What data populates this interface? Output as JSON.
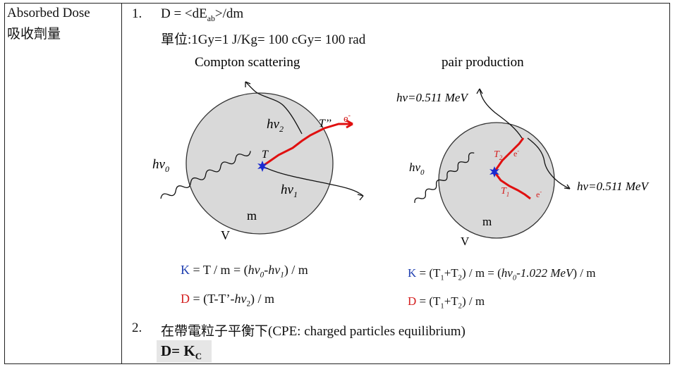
{
  "term": {
    "en": "Absorbed Dose",
    "zh": "吸收劑量"
  },
  "items": [
    {
      "num": "1.",
      "formula_prefix": "D = <dE",
      "formula_sub": "ab",
      "formula_suffix": ">/dm",
      "unit_line": "單位:1Gy=1 J/Kg= 100 cGy= 100 rad"
    },
    {
      "num": "2.",
      "text": "在帶電粒子平衡下(CPE: charged particles equilibrium)",
      "result_main": "D= K",
      "result_sub": "C"
    }
  ],
  "compton": {
    "title": "Compton scattering",
    "lbl_hv0": "hv",
    "lbl_hv0_sub": "0",
    "lbl_hv1": "hv",
    "lbl_hv1_sub": "1",
    "lbl_hv2": "hv",
    "lbl_hv2_sub": "2",
    "lbl_T": "T",
    "lbl_T2": "T’’",
    "lbl_e": "e",
    "lbl_e_sup": "-",
    "lbl_m": "m",
    "lbl_V": "V",
    "eq_K_sym": "K",
    "eq_K_a": " = T / m = (",
    "eq_K_hv0": "hv",
    "eq_K_hv0_sub": "0",
    "eq_K_mid": "-",
    "eq_K_hv1": "hv",
    "eq_K_hv1_sub": "1",
    "eq_K_end": ") / m",
    "eq_D_sym": "D",
    "eq_D_a": " = (T-T’-",
    "eq_D_hv2": "hv",
    "eq_D_hv2_sub": "2",
    "eq_D_end": ") / m"
  },
  "pair": {
    "title": "pair production",
    "lbl_hv_top": "hv=0.511 MeV",
    "lbl_hv_right": "hv=0.511 MeV",
    "lbl_hv0": "hv",
    "lbl_hv0_sub": "0",
    "lbl_T2": "T",
    "lbl_T2_sub": "2",
    "lbl_T1": "T",
    "lbl_T1_sub": "1",
    "lbl_e": "e",
    "lbl_e_sup": "-",
    "lbl_m": "m",
    "lbl_V": "V",
    "eq_K_sym": "K",
    "eq_K_a": " = (T",
    "eq_K_s1": "1",
    "eq_K_b": "+T",
    "eq_K_s2": "2",
    "eq_K_c": ") / m = (",
    "eq_K_hv": "hv",
    "eq_K_hv_sub": "0",
    "eq_K_d": "-1.022 MeV",
    "eq_K_e": ") / m",
    "eq_D_sym": "D",
    "eq_D_a": " = (T",
    "eq_D_s1": "1",
    "eq_D_b": "+T",
    "eq_D_s2": "2",
    "eq_D_c": ") / m"
  },
  "colors": {
    "blue": "#1f3fb0",
    "red": "#d42020",
    "circle_fill": "#d9d9d9",
    "track": "#e01010",
    "star": "#1a2ad0"
  }
}
